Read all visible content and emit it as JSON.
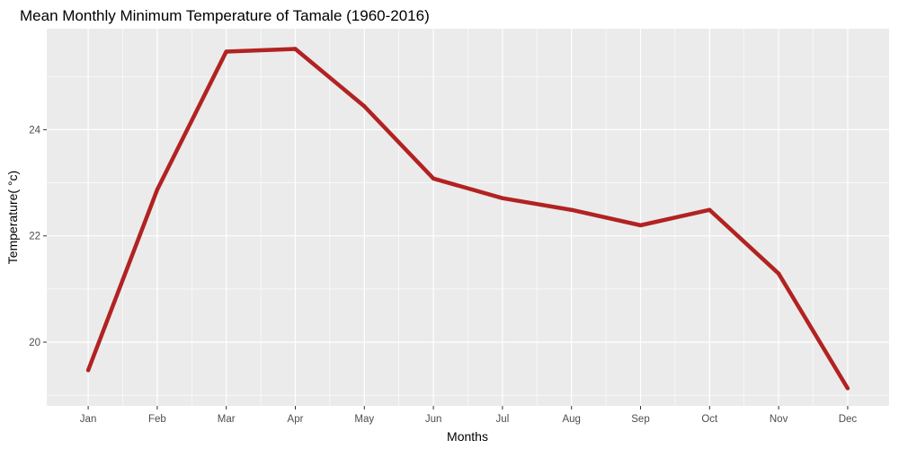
{
  "chart_data": {
    "type": "line",
    "title": "Mean Monthly Minimum Temperature  of Tamale (1960-2016)",
    "xlabel": "Months",
    "ylabel": "Temperature( °c)",
    "categories": [
      "Jan",
      "Feb",
      "Mar",
      "Apr",
      "May",
      "Jun",
      "Jul",
      "Aug",
      "Sep",
      "Oct",
      "Nov",
      "Dec"
    ],
    "series": [
      {
        "values": [
          19.47,
          22.87,
          25.47,
          25.52,
          24.44,
          23.08,
          22.71,
          22.49,
          22.2,
          22.49,
          21.29,
          19.13
        ],
        "color": "#b22222"
      }
    ],
    "yticks": [
      20,
      22,
      24
    ],
    "ylim": [
      18.8,
      25.9
    ],
    "grid": true,
    "panel_background": "#ebebeb",
    "grid_color": "#ffffff"
  }
}
